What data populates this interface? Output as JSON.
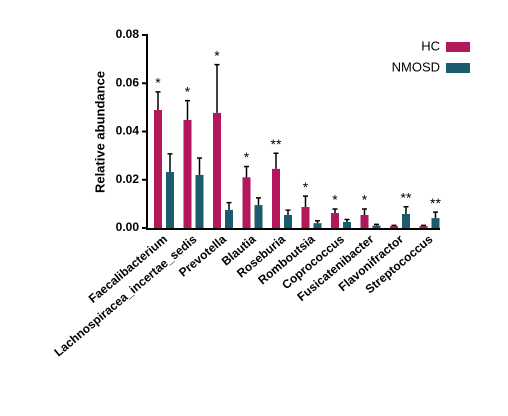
{
  "chart_data": {
    "type": "bar",
    "y_label": "Relative abundance",
    "categories": [
      "Faecalibacterium",
      "Lachnospiracea_incertae_sedis",
      "Prevotella",
      "Blautia",
      "Roseburia",
      "Romboutsia",
      "Coprococcus",
      "Fusicatenibacter",
      "Flavonifractor",
      "Streptococcus"
    ],
    "series": [
      {
        "name": "HC",
        "color": "#b3175c",
        "values": [
          0.0489,
          0.0448,
          0.0477,
          0.021,
          0.0245,
          0.0087,
          0.0062,
          0.0054,
          0.0008,
          0.0008
        ],
        "errors": [
          0.0075,
          0.008,
          0.02,
          0.0045,
          0.0065,
          0.0045,
          0.0017,
          0.0025,
          0.0003,
          0.0003
        ]
      },
      {
        "name": "NMOSD",
        "color": "#1b5b6b",
        "values": [
          0.0232,
          0.022,
          0.0075,
          0.0095,
          0.0054,
          0.002,
          0.0025,
          0.001,
          0.0058,
          0.0041
        ],
        "errors": [
          0.0075,
          0.007,
          0.003,
          0.003,
          0.002,
          0.001,
          0.001,
          0.0005,
          0.003,
          0.0025
        ]
      }
    ],
    "significance": [
      "*",
      "*",
      "*",
      "*",
      "**",
      "*",
      "*",
      "*",
      "**",
      "**"
    ],
    "ylim": [
      0,
      0.08
    ],
    "yticks": [
      {
        "value": 0,
        "label": "0.00"
      },
      {
        "value": 0.02,
        "label": "0.02"
      },
      {
        "value": 0.04,
        "label": "0.04"
      },
      {
        "value": 0.06,
        "label": "0.06"
      },
      {
        "value": 0.08,
        "label": "0.08"
      }
    ],
    "legend": "top-right"
  }
}
